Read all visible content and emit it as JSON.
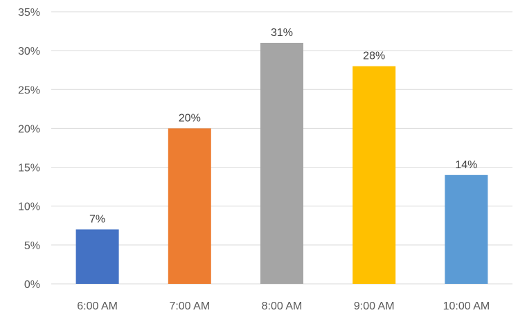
{
  "chart_data": {
    "type": "bar",
    "title": "",
    "xlabel": "",
    "ylabel": "",
    "categories": [
      "6:00 AM",
      "7:00 AM",
      "8:00 AM",
      "9:00 AM",
      "10:00 AM"
    ],
    "values": [
      7,
      20,
      31,
      28,
      14
    ],
    "data_labels": [
      "7%",
      "20%",
      "31%",
      "28%",
      "14%"
    ],
    "bar_colors": [
      "#4472C4",
      "#ED7D31",
      "#A5A5A5",
      "#FFC000",
      "#5B9BD5"
    ],
    "ylim": [
      0,
      35
    ],
    "yticks": [
      0,
      5,
      10,
      15,
      20,
      25,
      30,
      35
    ],
    "ytick_labels": [
      "0%",
      "5%",
      "10%",
      "15%",
      "20%",
      "25%",
      "30%",
      "35%"
    ],
    "grid": true,
    "gridline_color": "#D9D9D9",
    "legend": "none"
  }
}
